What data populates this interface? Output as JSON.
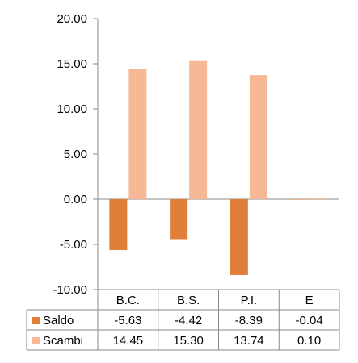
{
  "chart_data": {
    "type": "bar",
    "categories": [
      "B.C.",
      "B.S.",
      "P.I.",
      "E"
    ],
    "series": [
      {
        "name": "Saldo",
        "values": [
          -5.63,
          -4.42,
          -8.39,
          -0.04
        ],
        "color": "#e07f3a"
      },
      {
        "name": "Scambi",
        "values": [
          14.45,
          15.3,
          13.74,
          0.1
        ],
        "color": "#f7b995"
      }
    ],
    "table_values": [
      [
        "-5.63",
        "-4.42",
        "-8.39",
        "-0.04"
      ],
      [
        "14.45",
        "15.30",
        "13.74",
        "0.10"
      ]
    ],
    "y_ticks": [
      "20.00",
      "15.00",
      "10.00",
      "5.00",
      "0.00",
      "-5.00",
      "-10.00"
    ],
    "ylim": [
      -10,
      20
    ],
    "title": "",
    "xlabel": "",
    "ylabel": "",
    "grid": false,
    "legend": "data-table"
  }
}
